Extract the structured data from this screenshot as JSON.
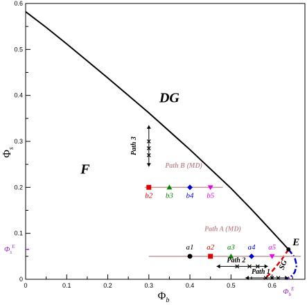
{
  "chart_data": {
    "type": "line",
    "title": "",
    "xlabel": "Φ",
    "xlabel_sub": "b",
    "ylabel": "Φ",
    "ylabel_sub": "s",
    "xlim": [
      0,
      0.68
    ],
    "ylim": [
      0,
      0.6
    ],
    "xticks": [
      0,
      0.1,
      0.2,
      0.3,
      0.4,
      0.5,
      0.6
    ],
    "yticks": [
      0,
      0.1,
      0.2,
      0.3,
      0.4,
      0.5,
      0.6
    ],
    "xtick_labels": [
      "0",
      "0.1",
      "0.2",
      "0.3",
      "0.4",
      "0.5",
      "0.6"
    ],
    "ytick_labels": [
      "0",
      "0.1",
      "0.2",
      "0.3",
      "0.4",
      "0.5",
      "0.6"
    ],
    "grid": false,
    "boundary": {
      "x": [
        0,
        0.05,
        0.1,
        0.15,
        0.2,
        0.25,
        0.3,
        0.35,
        0.4,
        0.45,
        0.5,
        0.55,
        0.6,
        0.64
      ],
      "y": [
        0.582,
        0.548,
        0.512,
        0.475,
        0.438,
        0.4,
        0.362,
        0.322,
        0.282,
        0.24,
        0.198,
        0.152,
        0.104,
        0.065
      ],
      "color": "#000000"
    },
    "red_dashed": {
      "x": [
        0.64,
        0.625,
        0.61,
        0.595,
        0.58
      ],
      "y": [
        0.065,
        0.045,
        0.028,
        0.012,
        0.0
      ],
      "color": "#e00000"
    },
    "blue_dashdot": {
      "x": [
        0.64,
        0.655,
        0.66,
        0.655,
        0.645,
        0.635
      ],
      "y": [
        0.065,
        0.048,
        0.03,
        0.015,
        0.005,
        0.0
      ],
      "color": "#0000cc"
    },
    "point_E": {
      "x": 0.64,
      "y": 0.065,
      "label": "E"
    },
    "ref_labels": {
      "phi_s": "Φ",
      "phi_s_sub": "s",
      "phi_s_sup": "E",
      "phi_b": "Φ",
      "phi_b_sub": "b",
      "phi_b_sup": "E",
      "phi_s_value": 0.065,
      "phi_b_value": 0.64
    },
    "regions": [
      {
        "label": "DG",
        "x": 0.35,
        "y": 0.385,
        "size": 20
      },
      {
        "label": "F",
        "x": 0.145,
        "y": 0.23,
        "size": 20
      },
      {
        "label": "SG",
        "x": 0.632,
        "y": 0.03,
        "size": 11
      }
    ],
    "path_A": {
      "label": "Path A (MD)",
      "line_y": 0.05,
      "line_x": [
        0.3,
        0.67
      ],
      "line_color": "#c39a9a",
      "label_color": "#bf9090",
      "label_x": 0.48,
      "label_y": 0.105,
      "points": [
        {
          "label": "a1",
          "x": 0.4,
          "color": "#000000",
          "marker": "circle"
        },
        {
          "label": "a2",
          "x": 0.45,
          "color": "#e00000",
          "marker": "square"
        },
        {
          "label": "a3",
          "x": 0.5,
          "color": "#008800",
          "marker": "triangle-up"
        },
        {
          "label": "a4",
          "x": 0.55,
          "color": "#0000dd",
          "marker": "diamond"
        },
        {
          "label": "a5",
          "x": 0.6,
          "color": "#ee00ee",
          "marker": "triangle-down"
        }
      ]
    },
    "path_B": {
      "label": "Path B (MD)",
      "line_y": 0.2,
      "line_x": [
        0.29,
        0.48
      ],
      "line_color": "#c39a9a",
      "label_color": "#bf9090",
      "label_x": 0.385,
      "label_y": 0.243,
      "points": [
        {
          "label": "b2",
          "x": 0.3,
          "color": "#e00000",
          "marker": "square"
        },
        {
          "label": "b3",
          "x": 0.35,
          "color": "#008800",
          "marker": "triangle-up"
        },
        {
          "label": "b4",
          "x": 0.4,
          "color": "#0000dd",
          "marker": "diamond"
        },
        {
          "label": "b5",
          "x": 0.45,
          "color": "#ee00ee",
          "marker": "triangle-down"
        }
      ]
    },
    "path_1": {
      "label": "Path 1",
      "y": 0.003,
      "x_from": 0.535,
      "x_to": 0.64,
      "markers_x": [
        0.585,
        0.6,
        0.615
      ],
      "label_x": 0.55,
      "label_y": 0.012
    },
    "path_2": {
      "label": "Path 2",
      "y": 0.028,
      "x_from": 0.465,
      "x_to": 0.59,
      "markers_x": [
        0.515,
        0.545,
        0.565
      ],
      "label_x": 0.49,
      "label_y": 0.037
    },
    "path_3": {
      "label": "Path 3",
      "x": 0.3,
      "y_from": 0.335,
      "y_to": 0.245,
      "markers_y": [
        0.3,
        0.285,
        0.27
      ],
      "label_x": 0.275,
      "label_y": 0.29
    }
  }
}
